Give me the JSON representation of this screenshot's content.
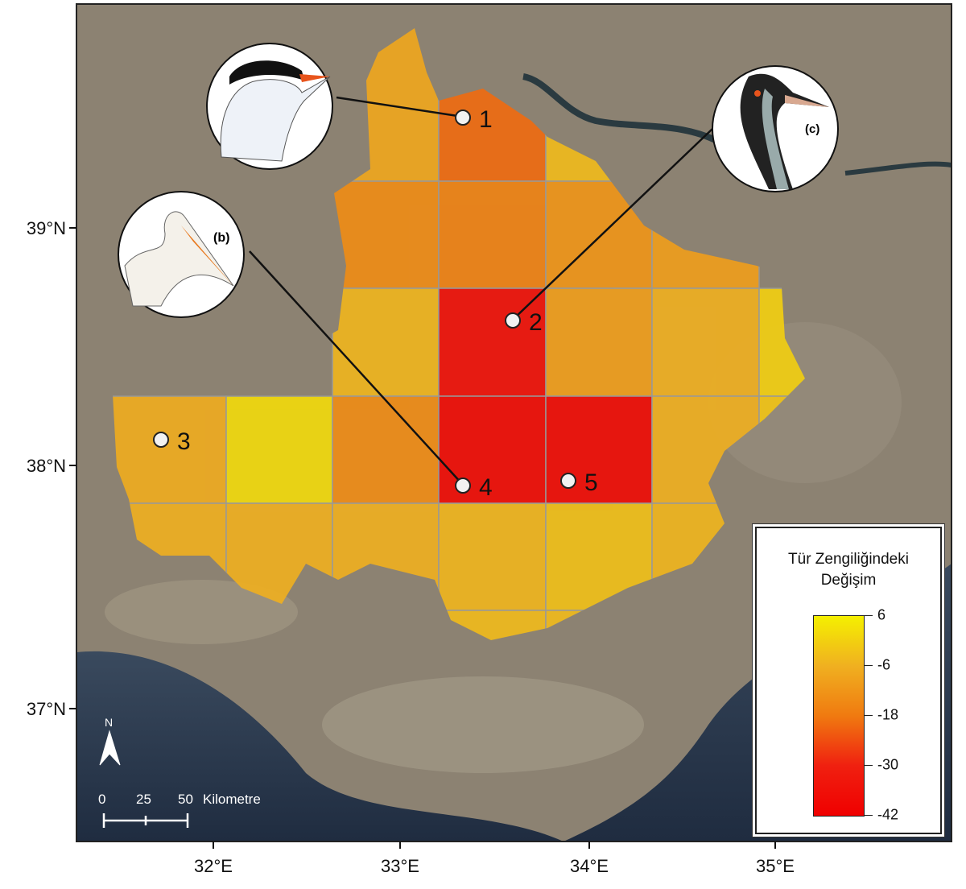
{
  "legend": {
    "title_line1": "Tür Zengiliğindeki",
    "title_line2": "Değişim",
    "ticks": [
      "6",
      "-6",
      "-18",
      "-30",
      "-42"
    ],
    "colors": [
      "#f5f000",
      "#f0b020",
      "#f07a10",
      "#f02010",
      "#f00000"
    ],
    "range": [
      -42,
      6
    ]
  },
  "axes": {
    "lat": [
      "39°N",
      "38°N",
      "37°N"
    ],
    "lon": [
      "32°E",
      "33°E",
      "34°E",
      "35°E"
    ]
  },
  "scalebar": {
    "labels": [
      "0",
      "25",
      "50"
    ],
    "unit": "Kilometre"
  },
  "north": "N",
  "sites": [
    {
      "label": "1"
    },
    {
      "label": "2"
    },
    {
      "label": "3"
    },
    {
      "label": "4"
    },
    {
      "label": "5"
    }
  ],
  "birds": [
    {
      "label": ""
    },
    {
      "label": "(b)"
    },
    {
      "label": "(c)"
    }
  ],
  "grid_values": [
    [
      null,
      null,
      -8,
      -20,
      -4,
      null,
      null
    ],
    [
      null,
      null,
      -14,
      -16,
      -12,
      -10,
      null
    ],
    [
      null,
      null,
      -5,
      -36,
      -10,
      -6,
      0
    ],
    [
      -7,
      2,
      -14,
      -38,
      -38,
      -6,
      -2
    ],
    [
      -6,
      -6,
      -6,
      -5,
      -3,
      -5,
      null
    ],
    [
      null,
      null,
      null,
      -4,
      -4,
      null,
      null
    ]
  ]
}
